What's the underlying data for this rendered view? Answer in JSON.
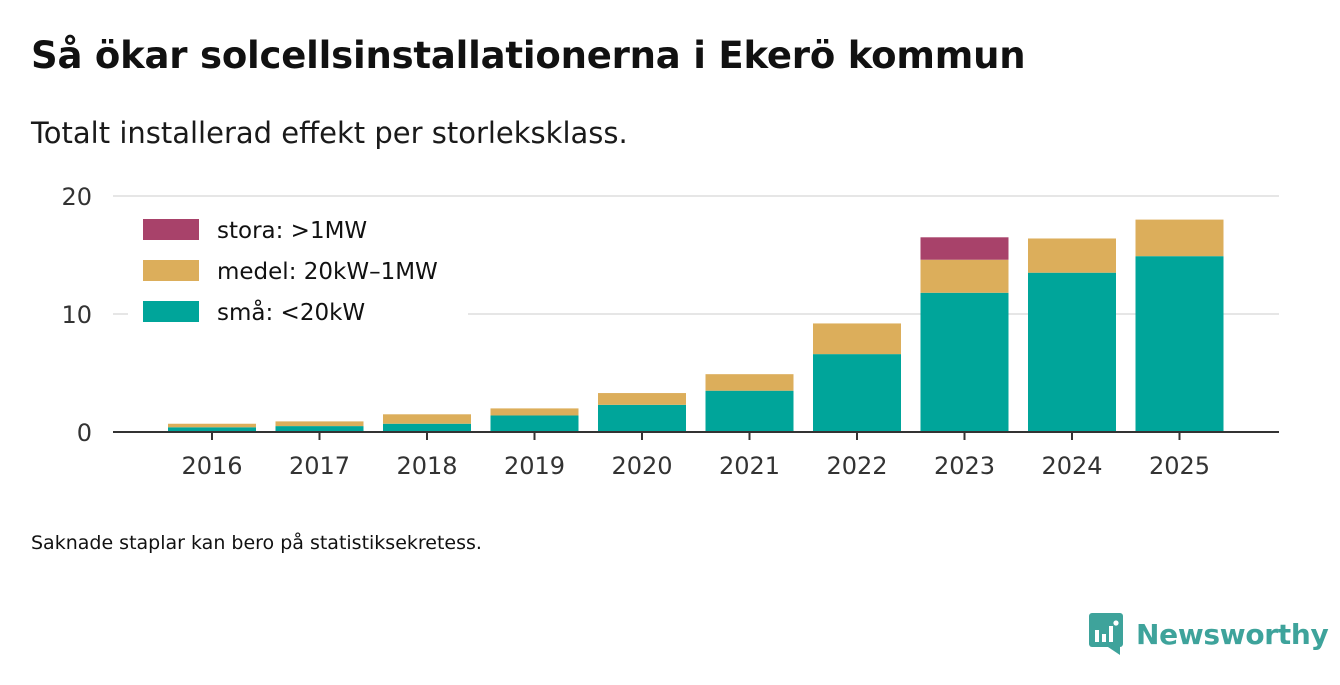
{
  "title": "Så ökar solcellsinstallationerna i Ekerö kommun",
  "subtitle": "Totalt installerad effekt per storleksklass.",
  "footnote": "Saknade staplar kan bero på statistiksekretess.",
  "brand": {
    "name": "Newsworthy",
    "icon": "newsworthy-logo-icon",
    "color": "#3ea39b"
  },
  "colors": {
    "stora": "#a8426a",
    "medel": "#dcae5b",
    "sma": "#00a59a",
    "grid": "#dddddd",
    "axis": "#333333"
  },
  "chart_data": {
    "type": "bar",
    "stacked": true,
    "title": "Så ökar solcellsinstallationerna i Ekerö kommun",
    "subtitle": "Totalt installerad effekt per storleksklass.",
    "xlabel": "",
    "ylabel": "",
    "ylim": [
      0,
      20
    ],
    "yticks": [
      0,
      10,
      20
    ],
    "grid": true,
    "legend_position": "top-left",
    "categories": [
      "2016",
      "2017",
      "2018",
      "2019",
      "2020",
      "2021",
      "2022",
      "2023",
      "2024",
      "2025"
    ],
    "series": [
      {
        "key": "sma",
        "name": "små: <20kW",
        "color": "#00a59a",
        "values": [
          0.4,
          0.5,
          0.7,
          1.4,
          2.3,
          3.5,
          6.6,
          11.8,
          13.5,
          14.9
        ]
      },
      {
        "key": "medel",
        "name": "medel: 20kW–1MW",
        "color": "#dcae5b",
        "values": [
          0.3,
          0.4,
          0.8,
          0.6,
          1.0,
          1.4,
          2.6,
          2.8,
          2.9,
          3.1
        ]
      },
      {
        "key": "stora",
        "name": "stora: >1MW",
        "color": "#a8426a",
        "values": [
          0,
          0,
          0,
          0,
          0,
          0,
          0,
          1.9,
          0,
          0
        ]
      }
    ],
    "legend": [
      {
        "key": "stora",
        "label": "stora: >1MW",
        "color": "#a8426a"
      },
      {
        "key": "medel",
        "label": "medel: 20kW–1MW",
        "color": "#dcae5b"
      },
      {
        "key": "sma",
        "label": "små: <20kW",
        "color": "#00a59a"
      }
    ]
  }
}
